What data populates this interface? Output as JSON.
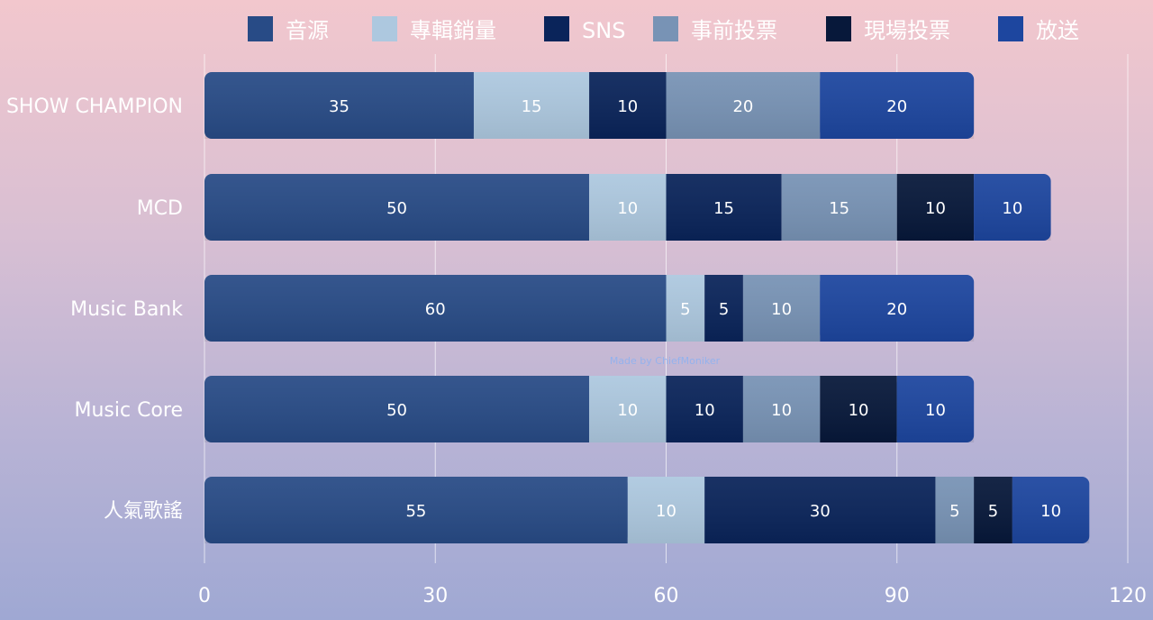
{
  "chart_data": {
    "type": "bar",
    "orientation": "horizontal",
    "stacked": true,
    "categories": [
      "SHOW CHAMPION",
      "MCD",
      "Music Bank",
      "Music Core",
      "人氣歌謠"
    ],
    "series": [
      {
        "name": "音源",
        "color": "#284b86",
        "values": [
          35,
          50,
          60,
          50,
          55
        ]
      },
      {
        "name": "專輯銷量",
        "color": "#adc8df",
        "values": [
          15,
          10,
          5,
          10,
          10
        ]
      },
      {
        "name": "SNS",
        "color": "#0a245a",
        "values": [
          10,
          15,
          5,
          10,
          30
        ]
      },
      {
        "name": "事前投票",
        "color": "#7893b5",
        "values": [
          20,
          15,
          10,
          10,
          5
        ]
      },
      {
        "name": "現場投票",
        "color": "#07183a",
        "values": [
          0,
          10,
          0,
          10,
          5
        ]
      },
      {
        "name": "放送",
        "color": "#1d469f",
        "values": [
          20,
          10,
          20,
          10,
          10
        ]
      }
    ],
    "xlim": [
      0,
      120
    ],
    "xticks": [
      0,
      30,
      60,
      90,
      120
    ],
    "grid": true,
    "legend_position": "top",
    "watermark": "Made by ChiefMoniker",
    "title": "",
    "xlabel": "",
    "ylabel": ""
  }
}
